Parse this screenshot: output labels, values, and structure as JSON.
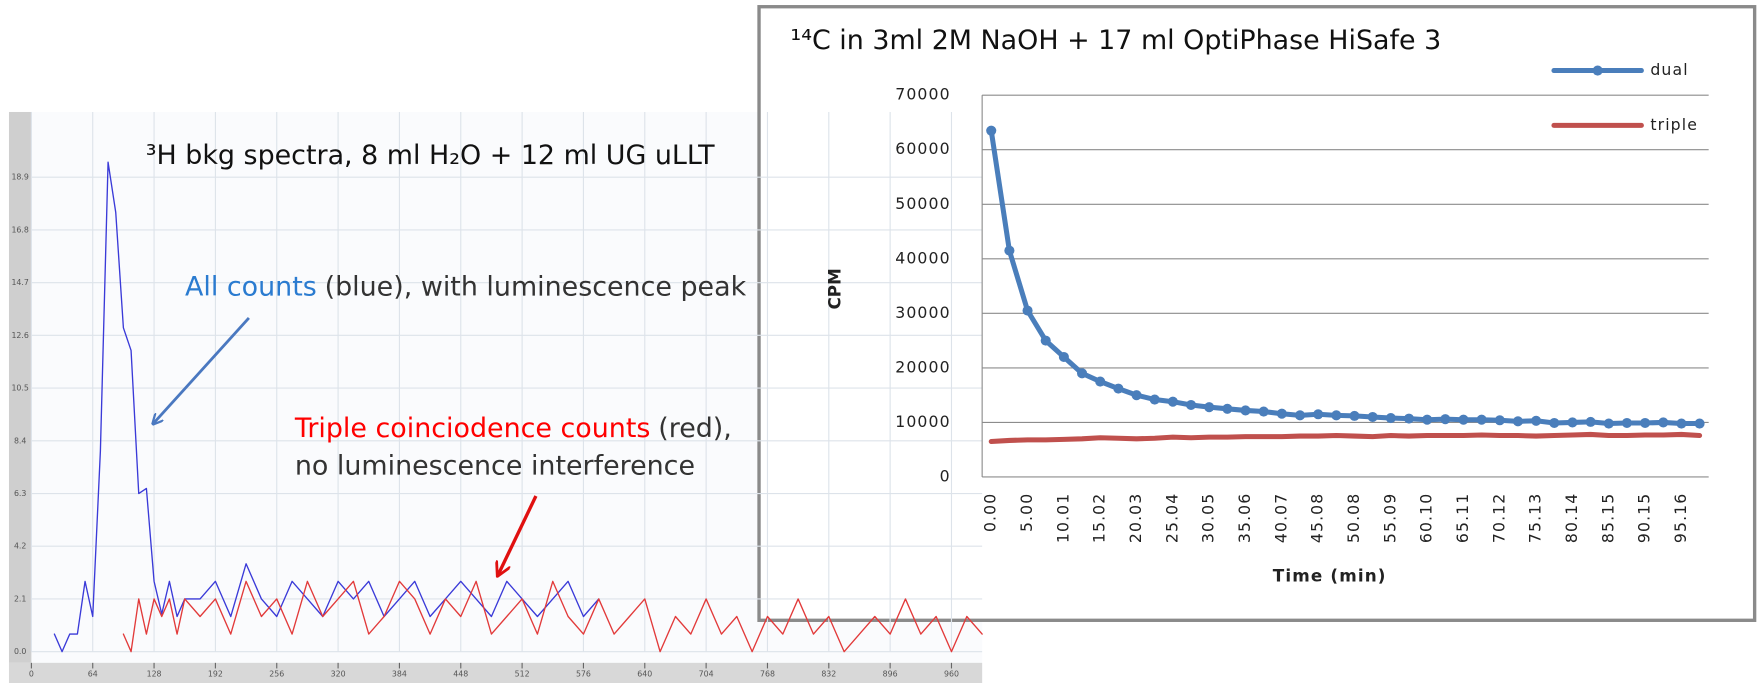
{
  "chart_data": [
    {
      "type": "line",
      "title": "³H bkg spectra, 8 ml H₂O + 12 ml UG uLLT",
      "annotations": [
        {
          "highlight": "All counts",
          "text": "(blue), with luminescence peak",
          "color": "#2a7bd0"
        },
        {
          "highlight": "Triple coinciodence counts",
          "text": "(red),",
          "line2": "no luminescence interference",
          "color": "#ff0000"
        }
      ],
      "x": [
        0,
        8,
        16,
        24,
        32,
        40,
        48,
        56,
        64,
        72,
        80,
        88,
        96,
        104,
        112,
        120,
        128,
        136,
        144,
        152,
        160,
        176,
        192,
        208,
        224,
        240,
        256,
        272,
        288,
        304,
        320,
        336,
        352,
        368,
        384,
        400,
        416,
        432,
        448,
        464,
        480,
        496,
        512,
        528,
        544,
        560,
        576,
        592,
        608,
        624,
        640,
        656,
        672,
        688,
        704,
        720,
        736,
        752,
        768,
        784,
        800,
        816,
        832,
        848,
        864,
        880,
        896,
        912,
        928,
        944,
        960,
        976,
        992
      ],
      "series": [
        {
          "color": "#3a3ad8",
          "values": [
            null,
            null,
            null,
            0.7,
            0,
            0.7,
            0.7,
            2.8,
            1.4,
            8,
            19.5,
            17.5,
            12.9,
            12,
            6.3,
            6.5,
            2.8,
            1.5,
            2.8,
            1.4,
            2.1,
            2.1,
            2.8,
            1.4,
            3.5,
            2.1,
            1.4,
            2.8,
            2.1,
            1.4,
            2.8,
            2.1,
            2.8,
            1.4,
            2.1,
            2.8,
            1.4,
            2.1,
            2.8,
            2.1,
            1.4,
            2.8,
            2.1,
            1.4,
            2.1,
            2.8,
            1.4,
            2.1,
            null,
            null,
            null,
            null,
            null,
            null,
            null,
            null,
            null,
            null,
            null,
            null,
            null,
            null,
            null,
            null,
            null,
            null,
            null,
            null,
            null,
            null,
            null,
            null,
            null
          ]
        },
        {
          "color": "#e23a3a",
          "values": [
            null,
            null,
            null,
            null,
            null,
            null,
            null,
            null,
            null,
            null,
            null,
            null,
            0.7,
            0,
            2.1,
            0.7,
            2.1,
            1.4,
            2.1,
            0.7,
            2.1,
            1.4,
            2.1,
            0.7,
            2.8,
            1.4,
            2.1,
            0.7,
            2.8,
            1.4,
            2.1,
            2.8,
            0.7,
            1.4,
            2.8,
            2.1,
            0.7,
            2.1,
            1.4,
            2.8,
            0.7,
            1.4,
            2.1,
            0.7,
            2.8,
            1.4,
            0.7,
            2.1,
            0.7,
            1.4,
            2.1,
            0,
            1.4,
            0.7,
            2.1,
            0.7,
            1.4,
            0,
            1.4,
            0.7,
            2.1,
            0.7,
            1.4,
            0,
            0.7,
            1.4,
            0.7,
            2.1,
            0.7,
            1.4,
            0,
            1.4,
            0.7
          ]
        }
      ],
      "xlim": [
        0,
        992
      ],
      "xticks": [
        0,
        64,
        128,
        192,
        256,
        320,
        384,
        448,
        512,
        576,
        640,
        704,
        768,
        832,
        896,
        960
      ],
      "ylim": [
        0,
        21.5
      ],
      "yticks": [
        {
          "value": 0,
          "label": "0.0"
        },
        2.1,
        4.2,
        6.3,
        8.4,
        10.5,
        12.6,
        14.7,
        16.8,
        18.9
      ],
      "grid": true
    },
    {
      "type": "line",
      "title": "¹⁴C in 3ml 2M NaOH + 17 ml OptiPhase HiSafe 3",
      "y_label": "CPM",
      "x_label": "Time (min)",
      "categories": [
        "0.00",
        null,
        "5.00",
        null,
        "10.01",
        null,
        "15.02",
        null,
        "20.03",
        null,
        "25.04",
        null,
        "30.05",
        null,
        "35.06",
        null,
        "40.07",
        null,
        "45.08",
        null,
        "50.08",
        null,
        "55.09",
        null,
        "60.10",
        null,
        "65.11",
        null,
        "70.12",
        null,
        "75.13",
        null,
        "80.14",
        null,
        "85.15",
        null,
        "90.15",
        null,
        "95.16",
        null
      ],
      "series": [
        {
          "name": "dual",
          "color": "#4a7ebb",
          "markers": true,
          "values": [
            63500,
            41500,
            30500,
            25000,
            22000,
            19000,
            17500,
            16200,
            15000,
            14200,
            13800,
            13200,
            12800,
            12500,
            12200,
            12000,
            11600,
            11300,
            11500,
            11300,
            11200,
            11000,
            10800,
            10700,
            10500,
            10600,
            10500,
            10500,
            10400,
            10200,
            10300,
            9900,
            10000,
            10100,
            9800,
            9900,
            9900,
            10000,
            9800,
            9800
          ]
        },
        {
          "name": "triple",
          "color": "#c0504d",
          "markers": false,
          "values": [
            6500,
            6700,
            6800,
            6800,
            6900,
            7000,
            7200,
            7100,
            7000,
            7100,
            7300,
            7200,
            7300,
            7300,
            7400,
            7400,
            7400,
            7500,
            7500,
            7600,
            7500,
            7400,
            7600,
            7500,
            7600,
            7600,
            7600,
            7700,
            7600,
            7600,
            7500,
            7600,
            7700,
            7800,
            7600,
            7600,
            7700,
            7700,
            7800,
            7600
          ]
        }
      ],
      "ylim": [
        0,
        70000
      ],
      "yticks": [
        0,
        10000,
        20000,
        30000,
        40000,
        50000,
        60000,
        70000
      ],
      "grid": true,
      "legend": "top-right"
    }
  ]
}
